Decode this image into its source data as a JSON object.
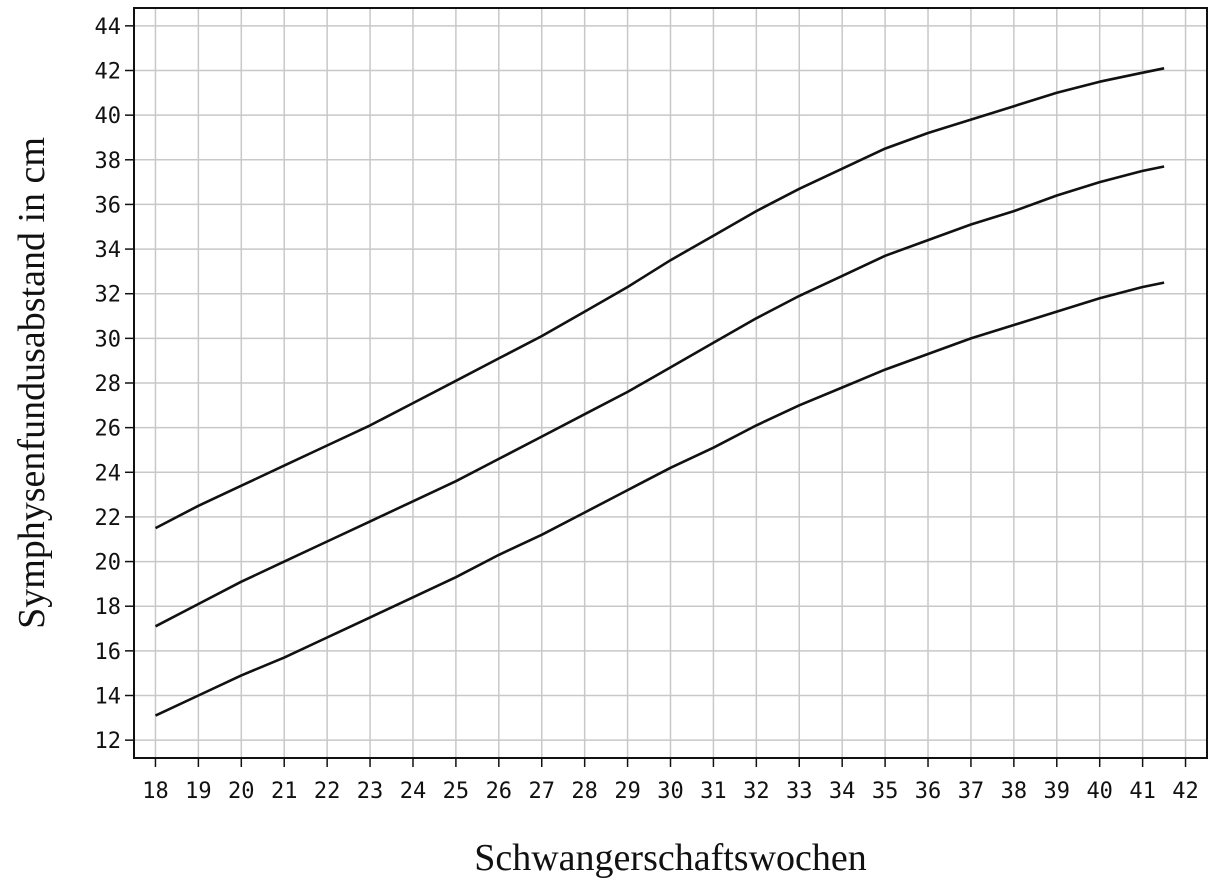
{
  "chart_data": {
    "type": "line",
    "title": "",
    "xlabel": "Schwangerschaftswochen",
    "ylabel": "Symphysenfundusabstand in cm",
    "xlim": [
      17.5,
      42.5
    ],
    "ylim": [
      11.2,
      44.8
    ],
    "xticks": [
      18,
      19,
      20,
      21,
      22,
      23,
      24,
      25,
      26,
      27,
      28,
      29,
      30,
      31,
      32,
      33,
      34,
      35,
      36,
      37,
      38,
      39,
      40,
      41,
      42
    ],
    "yticks": [
      12,
      14,
      16,
      18,
      20,
      22,
      24,
      26,
      28,
      30,
      32,
      34,
      36,
      38,
      40,
      42,
      44
    ],
    "xtick_labels": [
      "18",
      "19",
      "20",
      "21",
      "22",
      "23",
      "24",
      "25",
      "26",
      "27",
      "28",
      "29",
      "30",
      "31",
      "32",
      "33",
      "34",
      "35",
      "36",
      "37",
      "38",
      "39",
      "40",
      "41",
      "42"
    ],
    "ytick_labels": [
      "12",
      "14",
      "16",
      "18",
      "20",
      "22",
      "24",
      "26",
      "28",
      "30",
      "32",
      "34",
      "36",
      "38",
      "40",
      "42",
      "44"
    ],
    "grid": true,
    "legend": "none",
    "x": [
      18,
      19,
      20,
      21,
      22,
      23,
      24,
      25,
      26,
      27,
      28,
      29,
      30,
      31,
      32,
      33,
      34,
      35,
      36,
      37,
      38,
      39,
      40,
      41,
      41.5
    ],
    "series": [
      {
        "values": [
          21.5,
          22.5,
          23.4,
          24.3,
          25.2,
          26.1,
          27.1,
          28.1,
          29.1,
          30.1,
          31.2,
          32.3,
          33.5,
          34.6,
          35.7,
          36.7,
          37.6,
          38.5,
          39.2,
          39.8,
          40.4,
          41.0,
          41.5,
          41.9,
          42.1
        ]
      },
      {
        "values": [
          17.1,
          18.1,
          19.1,
          20.0,
          20.9,
          21.8,
          22.7,
          23.6,
          24.6,
          25.6,
          26.6,
          27.6,
          28.7,
          29.8,
          30.9,
          31.9,
          32.8,
          33.7,
          34.4,
          35.1,
          35.7,
          36.4,
          37.0,
          37.5,
          37.7
        ]
      },
      {
        "values": [
          13.1,
          14.0,
          14.9,
          15.7,
          16.6,
          17.5,
          18.4,
          19.3,
          20.3,
          21.2,
          22.2,
          23.2,
          24.2,
          25.1,
          26.1,
          27.0,
          27.8,
          28.6,
          29.3,
          30.0,
          30.6,
          31.2,
          31.8,
          32.3,
          32.5
        ]
      }
    ]
  }
}
